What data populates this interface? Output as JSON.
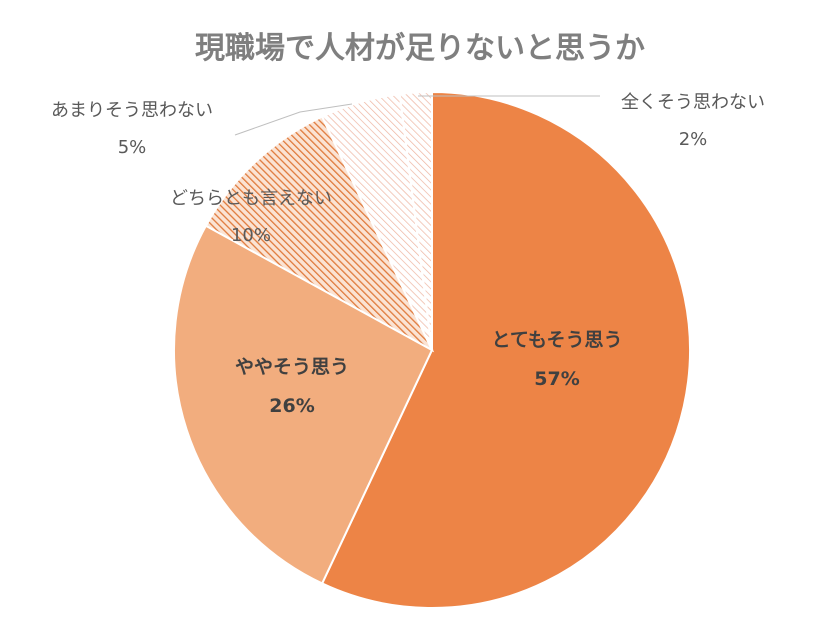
{
  "chart_data": {
    "type": "pie",
    "title": "現職場で人材が足りないと思うか",
    "unit": "%",
    "slices": [
      {
        "label": "とてもそう思う",
        "value": 57,
        "value_label": "57%",
        "color": "#ed8446",
        "pattern": "solid"
      },
      {
        "label": "ややそう思う",
        "value": 26,
        "value_label": "26%",
        "color": "#f2ad7e",
        "pattern": "solid"
      },
      {
        "label": "どちらとも言えない",
        "value": 10,
        "value_label": "10%",
        "color": "#f0a26c",
        "pattern": "hatch-dense"
      },
      {
        "label": "あまりそう思わない",
        "value": 5,
        "value_label": "5%",
        "color": "#f4b492",
        "pattern": "hatch-light"
      },
      {
        "label": "全くそう思わない",
        "value": 2,
        "value_label": "2%",
        "color": "#f6c4b0",
        "pattern": "hatch-light"
      }
    ],
    "start_angle": "12 o'clock",
    "direction": "clockwise",
    "legend": "none"
  }
}
